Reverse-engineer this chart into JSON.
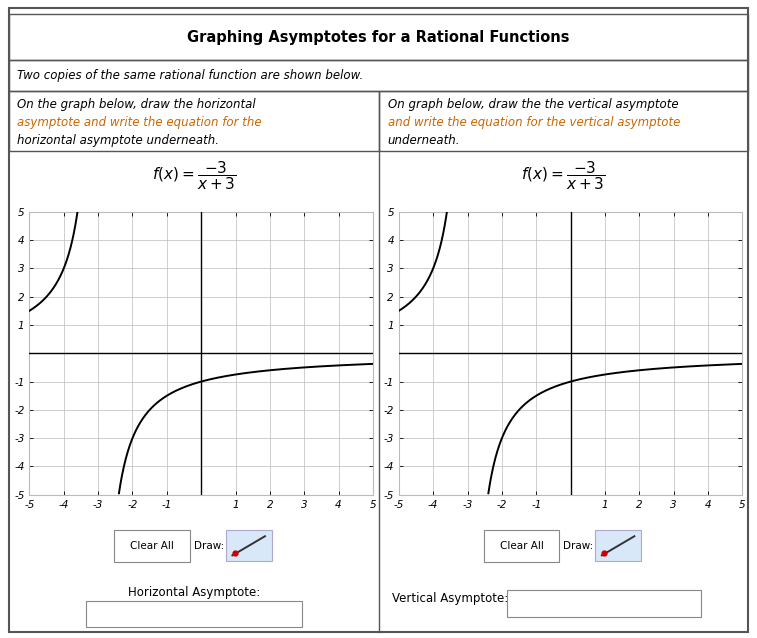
{
  "title": "Graphing Asymptotes for a Rational Functions",
  "subtitle": "Two copies of the same rational function are shown below.",
  "left_instruction_line1": "On the graph below, draw the horizontal",
  "left_instruction_line2": "asymptote and write the equation for the",
  "left_instruction_line3": "horizontal asymptote underneath.",
  "right_instruction_line1": "On graph below, draw the the vertical asymptote",
  "right_instruction_line2": "and write the equation for the vertical asymptote",
  "right_instruction_line3": "underneath.",
  "left_label": "Horizontal Asymptote:",
  "right_label": "Vertical Asymptote:",
  "text_color_black": "#000000",
  "text_color_blue": "#1a1aff",
  "text_color_red": "#cc2200",
  "text_color_orange": "#cc6600",
  "grid_color": "#bbbbbb",
  "axis_color": "#000000",
  "bg_color": "#ffffff",
  "border_color": "#555555",
  "curve_color": "#000000",
  "font_size_title": 10.5,
  "font_size_text": 8.5,
  "font_size_formula": 10,
  "font_size_tick": 7.5,
  "fig_width": 7.57,
  "fig_height": 6.38
}
